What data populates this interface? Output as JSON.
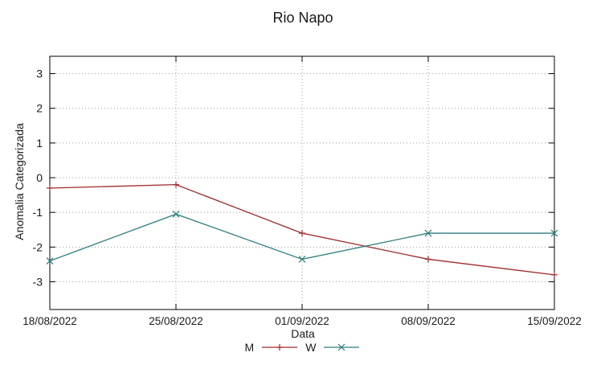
{
  "title": "Rio Napo",
  "chart_data": {
    "type": "line",
    "title": "Rio Napo",
    "xlabel": "Data",
    "ylabel": "Anomalia Categorizada",
    "x": [
      "18/08/2022",
      "25/08/2022",
      "01/09/2022",
      "08/09/2022",
      "15/09/2022"
    ],
    "series": [
      {
        "name": "M",
        "color": "#9e2a2b",
        "marker": "plus",
        "values": [
          -0.3,
          -0.2,
          -1.6,
          -2.35,
          -2.8
        ]
      },
      {
        "name": "W",
        "color": "#2f7f7c",
        "marker": "cross",
        "values": [
          -2.4,
          -1.05,
          -2.35,
          -1.6,
          -1.6
        ]
      }
    ],
    "yticks": [
      -3,
      -2,
      -1,
      0,
      1,
      2,
      3
    ],
    "ylim": [
      -3.8,
      3.5
    ],
    "grid": true,
    "legend_position": "bottom-center",
    "border_color": "#000000",
    "grid_color": "#9a9a9a"
  }
}
